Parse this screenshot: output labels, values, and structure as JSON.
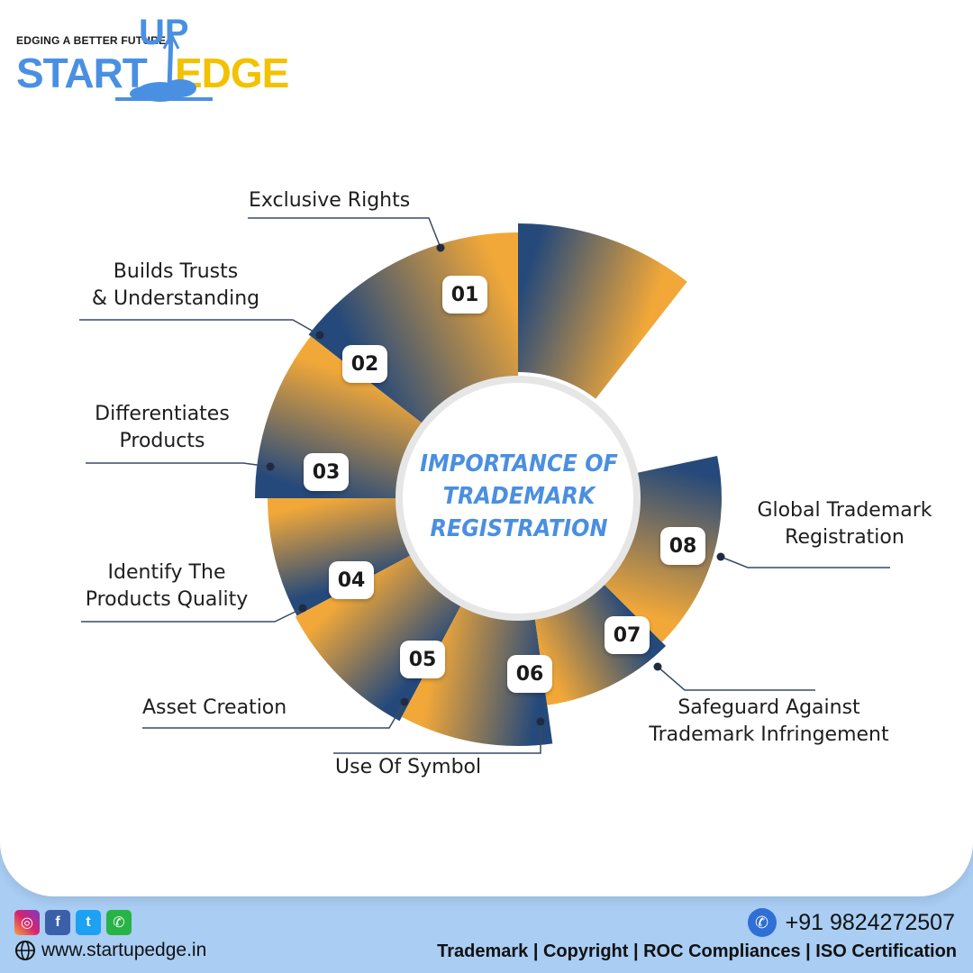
{
  "brand": {
    "tagline": "EDGING A BETTER FUTURE",
    "word_up": "UP",
    "word_start": "START",
    "word_edge": "EDGE"
  },
  "center_title": [
    "IMPORTANCE OF",
    "TRADEMARK",
    "REGISTRATION"
  ],
  "items": [
    {
      "num": "01",
      "label": "Exclusive Rights"
    },
    {
      "num": "02",
      "label": "Builds Trusts\n& Understanding"
    },
    {
      "num": "03",
      "label": "Differentiates\nProducts"
    },
    {
      "num": "04",
      "label": "Identify The\nProducts Quality"
    },
    {
      "num": "05",
      "label": "Asset Creation"
    },
    {
      "num": "06",
      "label": "Use Of Symbol"
    },
    {
      "num": "07",
      "label": "Safeguard Against\nTrademark Infringement"
    },
    {
      "num": "08",
      "label": "Global Trademark\nRegistration"
    }
  ],
  "footer": {
    "website": "www.startupedge.in",
    "phone": "+91 9824272507",
    "services": "Trademark | Copyright | ROC Compliances | ISO Certification",
    "social_icons": [
      "instagram-icon",
      "facebook-icon",
      "twitter-icon",
      "whatsapp-icon"
    ]
  },
  "colors": {
    "segment_dark": "#25497a",
    "segment_light": "#f2a838",
    "title_blue": "#4a8fe0",
    "footer_bg": "#a9cdf3"
  }
}
